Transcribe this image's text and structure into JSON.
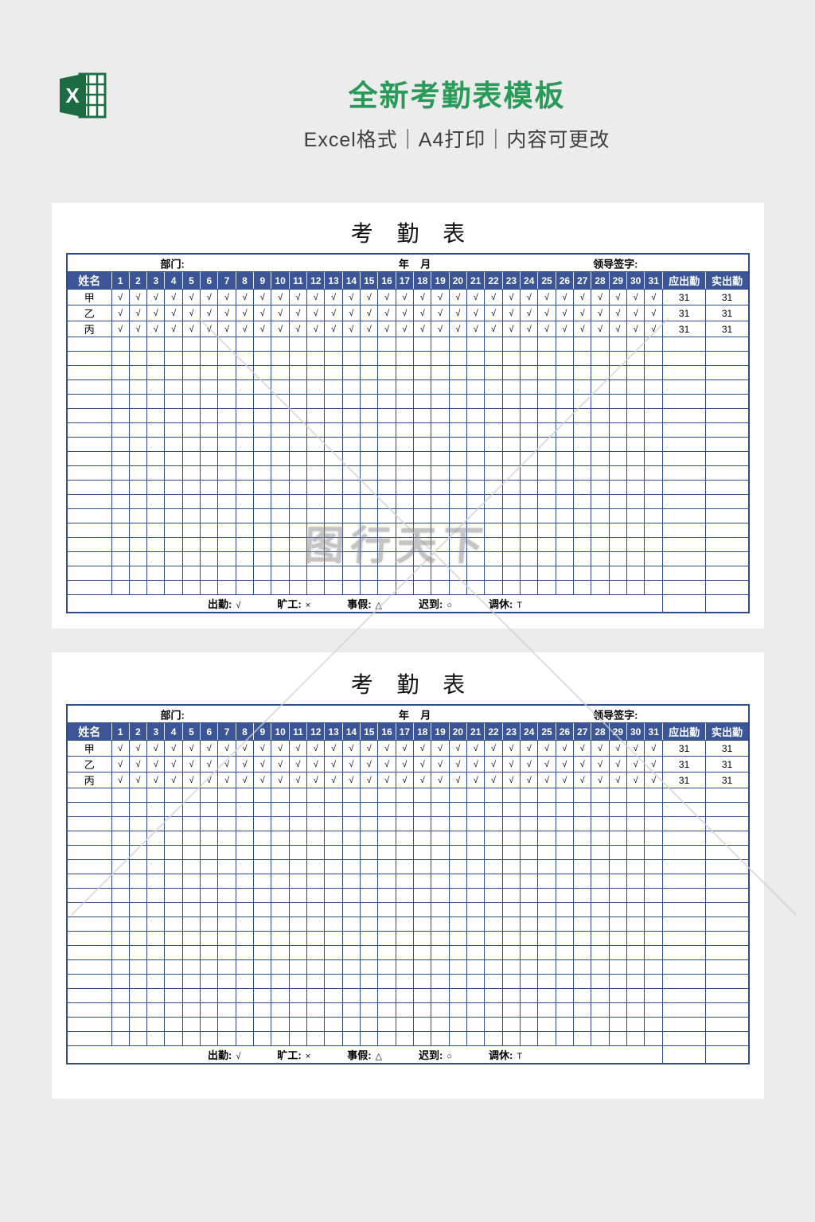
{
  "page": {
    "background": "#ececec"
  },
  "colors": {
    "brand_green": "#279b57",
    "header_blue": "#3b5596",
    "grid_blue": "#2f4c8e",
    "watermark_gray": "#8a8a8a"
  },
  "header": {
    "title": "全新考勤表模板",
    "subtitle": "Excel格式｜A4打印｜内容可更改",
    "logo_icon": "excel-logo-icon"
  },
  "watermark": {
    "text": "图行天下"
  },
  "sheet": {
    "title": "考 勤 表",
    "info": {
      "department": "部门:",
      "year_month": "年    月",
      "leader": "领导签字:"
    },
    "header": {
      "name": "姓名",
      "days": [
        "1",
        "2",
        "3",
        "4",
        "5",
        "6",
        "7",
        "8",
        "9",
        "10",
        "11",
        "12",
        "13",
        "14",
        "15",
        "16",
        "17",
        "18",
        "19",
        "20",
        "21",
        "22",
        "23",
        "24",
        "25",
        "26",
        "27",
        "28",
        "29",
        "30",
        "31"
      ],
      "required": "应出勤",
      "actual": "实出勤"
    },
    "rows": [
      {
        "name": "甲",
        "marks": [
          "√",
          "√",
          "√",
          "√",
          "√",
          "√",
          "√",
          "√",
          "√",
          "√",
          "√",
          "√",
          "√",
          "√",
          "√",
          "√",
          "√",
          "√",
          "√",
          "√",
          "√",
          "√",
          "√",
          "√",
          "√",
          "√",
          "√",
          "√",
          "√",
          "√",
          "√"
        ],
        "required": "31",
        "actual": "31"
      },
      {
        "name": "乙",
        "marks": [
          "√",
          "√",
          "√",
          "√",
          "√",
          "√",
          "√",
          "√",
          "√",
          "√",
          "√",
          "√",
          "√",
          "√",
          "√",
          "√",
          "√",
          "√",
          "√",
          "√",
          "√",
          "√",
          "√",
          "√",
          "√",
          "√",
          "√",
          "√",
          "√",
          "√",
          "√"
        ],
        "required": "31",
        "actual": "31"
      },
      {
        "name": "丙",
        "marks": [
          "√",
          "√",
          "√",
          "√",
          "√",
          "√",
          "√",
          "√",
          "√",
          "√",
          "√",
          "√",
          "√",
          "√",
          "√",
          "√",
          "√",
          "√",
          "√",
          "√",
          "√",
          "√",
          "√",
          "√",
          "√",
          "√",
          "√",
          "√",
          "√",
          "√",
          "√"
        ],
        "required": "31",
        "actual": "31"
      }
    ],
    "empty_row_count": 18,
    "legend": [
      {
        "label": "出勤:",
        "symbol": "√"
      },
      {
        "label": "旷工:",
        "symbol": "×"
      },
      {
        "label": "事假:",
        "symbol": "△"
      },
      {
        "label": "迟到:",
        "symbol": "○"
      },
      {
        "label": "调休:",
        "symbol": "T"
      }
    ]
  }
}
